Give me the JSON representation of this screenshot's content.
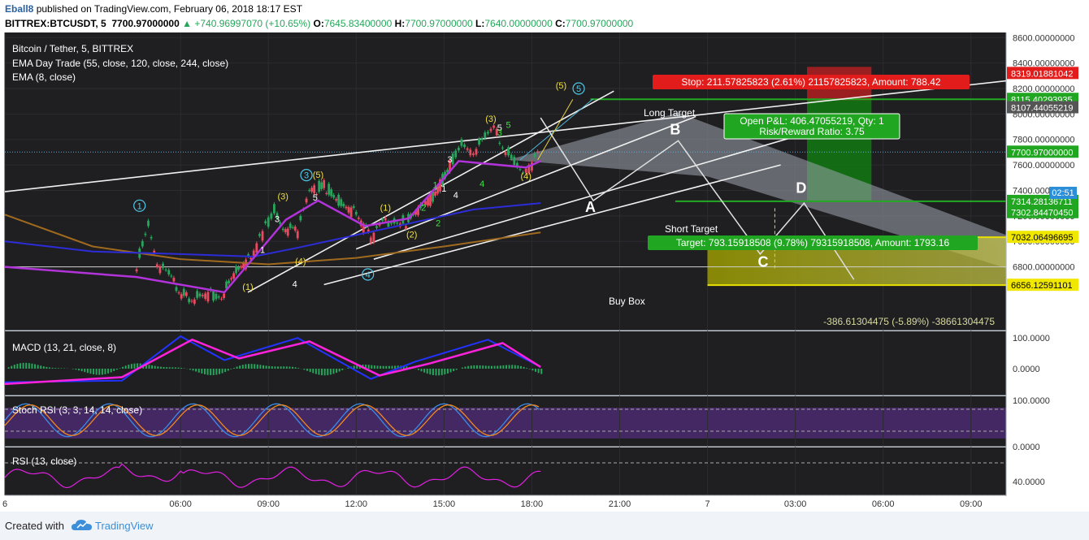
{
  "header": {
    "author": "Eball8",
    "published_text": "published on TradingView.com, February 06, 2018 18:17 EST",
    "symbol": "BITTREX:BTCUSDT, 5",
    "last": "7700.97000000",
    "change": "+740.96997070 (+10.65%)",
    "o_label": "O:",
    "o_value": "7645.83400000",
    "h_label": "H:",
    "h_value": "7700.97000000",
    "l_label": "L:",
    "l_value": "7640.00000000",
    "c_label": "C:",
    "c_value": "7700.97000000"
  },
  "legend": {
    "title": "Bitcoin / Tether, 5, BITTREX",
    "ema1": "EMA Day Trade (55, close, 120, close, 244, close)",
    "ema2": "EMA (8, close)"
  },
  "panes": {
    "macd": "MACD (13, 21, close, 8)",
    "stoch": "Stoch RSI (3, 3, 14, 14, close)",
    "rsi": "RSI (13, close)"
  },
  "annotations": {
    "stop_box": "Stop: 211.57825823 (2.61%) 21157825823, Amount: 788.42",
    "pnl_line1": "Open P&L: 406.47055219, Qty: 1",
    "pnl_line2": "Risk/Reward Ratio: 3.75",
    "target_box": "Target: 793.15918508 (9.78%) 79315918508, Amount: 1793.16",
    "long_target": "Long Target",
    "short_target": "Short Target",
    "buy_box": "Buy Box",
    "buy_box_info": "-386.61304475 (-5.89%) -38661304475",
    "A": "A",
    "B": "B",
    "C": "C",
    "D": "D"
  },
  "time_label": "02:51",
  "footer": {
    "created": "Created with",
    "brand": "TradingView"
  },
  "colors": {
    "up": "#26a65b",
    "down": "#e84a5f",
    "macd": "#2233ff",
    "signal": "#ff22dd",
    "stop": "#e02020",
    "target": "#22aa22",
    "buybox": "#e8e000"
  },
  "chart_data": [
    {
      "type": "line",
      "title": "Bitcoin / Tether, 5, BITTREX",
      "price_range": [
        6300,
        8750
      ],
      "y_ticks": [
        6800,
        7000,
        7200,
        7400,
        7600,
        7800,
        8000,
        8200,
        8400,
        8600
      ],
      "y_tick_labels": [
        "6800.00000000",
        "7000.00000000",
        "7200.00000000",
        "7400.00000000",
        "7600.00000000",
        "7800.00000000",
        "8000.00000000",
        "8200.00000000",
        "8400.00000000",
        "8600.00000000"
      ],
      "time_range": [
        0,
        34.2
      ],
      "x_ticks": [
        0,
        6,
        9,
        12,
        15,
        18,
        21,
        24,
        27,
        30,
        33
      ],
      "x_tick_labels": [
        "6",
        "06:00",
        "09:00",
        "12:00",
        "15:00",
        "18:00",
        "21:00",
        "7",
        "03:00",
        "06:00",
        "09:00"
      ],
      "price_path": [
        [
          4.5,
          6820
        ],
        [
          4.9,
          7140
        ],
        [
          5.2,
          6820
        ],
        [
          5.6,
          6720
        ],
        [
          6.2,
          6560
        ],
        [
          7.4,
          6580
        ],
        [
          7.9,
          6760
        ],
        [
          8.4,
          6860
        ],
        [
          8.8,
          7050
        ],
        [
          9.2,
          7260
        ],
        [
          9.5,
          7110
        ],
        [
          10.0,
          7080
        ],
        [
          10.4,
          7380
        ],
        [
          10.9,
          7440
        ],
        [
          11.4,
          7310
        ],
        [
          12.0,
          7220
        ],
        [
          12.5,
          7020
        ],
        [
          12.9,
          7130
        ],
        [
          13.3,
          7180
        ],
        [
          13.7,
          7140
        ],
        [
          14.2,
          7260
        ],
        [
          14.7,
          7370
        ],
        [
          15.2,
          7600
        ],
        [
          15.6,
          7780
        ],
        [
          16.0,
          7700
        ],
        [
          16.4,
          7800
        ],
        [
          16.7,
          7880
        ],
        [
          17.0,
          7770
        ],
        [
          17.4,
          7620
        ],
        [
          17.7,
          7540
        ],
        [
          18.0,
          7600
        ],
        [
          18.3,
          7700
        ]
      ],
      "ema_fast": [
        [
          0,
          7000
        ],
        [
          3,
          6920
        ],
        [
          6,
          6900
        ],
        [
          8.5,
          6880
        ],
        [
          10,
          6950
        ],
        [
          12,
          7050
        ],
        [
          14,
          7150
        ],
        [
          16,
          7250
        ],
        [
          18.3,
          7300
        ]
      ],
      "ema_slow": [
        [
          0,
          7210
        ],
        [
          3,
          6960
        ],
        [
          6,
          6860
        ],
        [
          9,
          6820
        ],
        [
          12,
          6870
        ],
        [
          15,
          6960
        ],
        [
          18.3,
          7070
        ]
      ],
      "ema_8": [
        [
          0,
          6800
        ],
        [
          4.5,
          6720
        ],
        [
          7.5,
          6600
        ],
        [
          9.6,
          7170
        ],
        [
          10.7,
          7320
        ],
        [
          12.3,
          7120
        ],
        [
          13.8,
          7180
        ],
        [
          15.5,
          7630
        ],
        [
          17.8,
          7580
        ],
        [
          18.3,
          7630
        ]
      ],
      "stop_level": 8319.01881042,
      "target_level": 7314.28136711,
      "entry_level": 8107.44055219,
      "current_price": 7700.97,
      "long_target_level": 8115.40293935,
      "buy_box_low": 6656.12591101,
      "buy_box_high": 7032.06496695,
      "price_labels": [
        "8319.01881042",
        "8115.40293935",
        "8107.44055219",
        "7700.97000000",
        "7314.28136711",
        "7302.84470450",
        "7032.06496695",
        "6656.12591101"
      ],
      "abcd": [
        [
          18.3,
          7970
        ],
        [
          20.1,
          7320
        ],
        [
          23.0,
          7790
        ],
        [
          25.8,
          6900
        ],
        [
          27.3,
          7300
        ],
        [
          29.0,
          6700
        ]
      ]
    },
    {
      "type": "line",
      "title": "MACD (13, 21, close, 8)",
      "y_ticks": [
        0,
        100
      ],
      "y_tick_labels": [
        "0.0000",
        "100.0000"
      ],
      "macd": [
        [
          0,
          -40
        ],
        [
          4,
          -35
        ],
        [
          6,
          95
        ],
        [
          7.5,
          25
        ],
        [
          10,
          90
        ],
        [
          12.5,
          -30
        ],
        [
          14,
          20
        ],
        [
          16.5,
          85
        ],
        [
          18.3,
          5
        ]
      ],
      "signal": [
        [
          0,
          -45
        ],
        [
          4,
          -25
        ],
        [
          6.4,
          85
        ],
        [
          8,
          30
        ],
        [
          10.4,
          80
        ],
        [
          12.8,
          -20
        ],
        [
          14.5,
          15
        ],
        [
          17,
          75
        ],
        [
          18.3,
          5
        ]
      ]
    },
    {
      "type": "line",
      "title": "Stoch RSI (3, 3, 14, 14, close)",
      "y_ticks": [
        0,
        100
      ],
      "y_tick_labels": [
        "0.0000",
        "100.0000"
      ],
      "bands": [
        80,
        20
      ],
      "range": [
        0,
        100
      ]
    },
    {
      "type": "line",
      "title": "RSI (13, close)",
      "y_ticks": [
        40
      ],
      "y_tick_labels": [
        "40.0000"
      ],
      "bands": [
        70,
        30
      ],
      "range": [
        30,
        80
      ]
    }
  ]
}
